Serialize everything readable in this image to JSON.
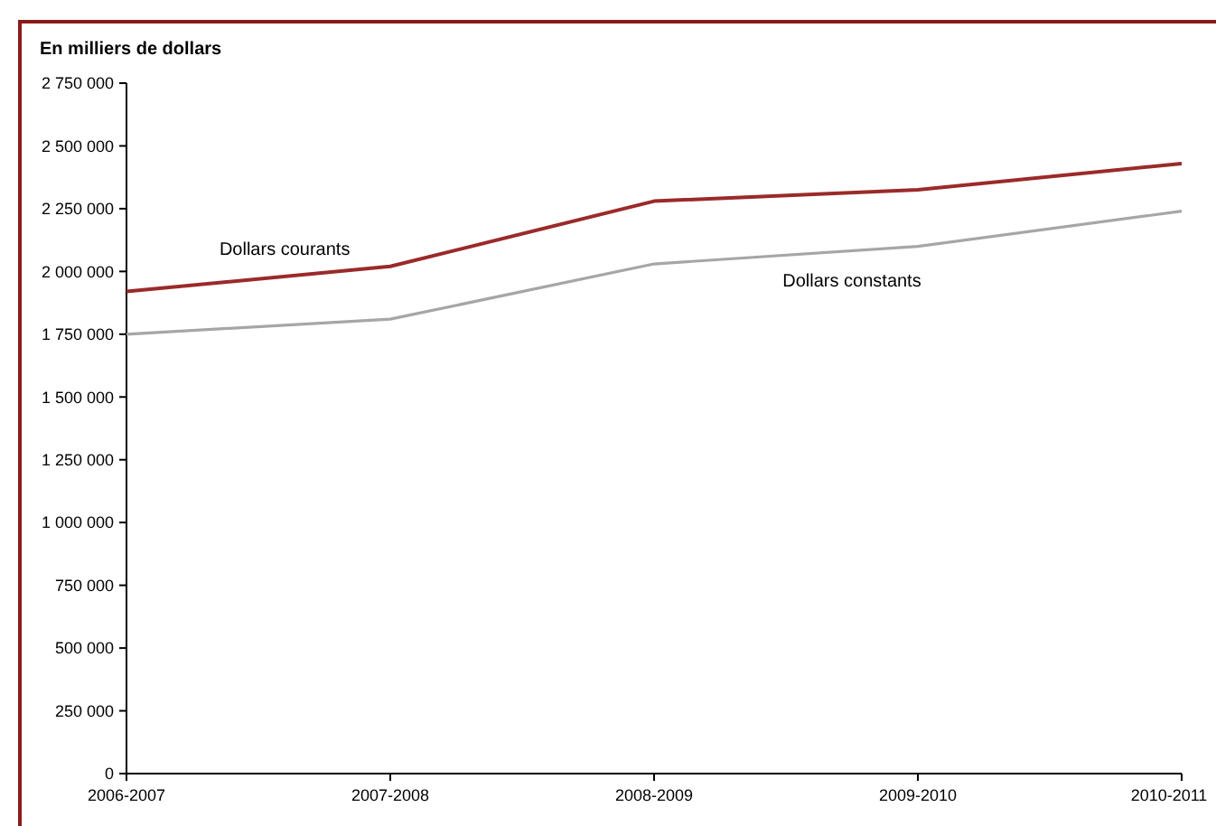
{
  "chart_data": {
    "type": "line",
    "ylabel": "En milliers de dollars",
    "categories": [
      "2006-2007",
      "2007-2008",
      "2008-2009",
      "2009-2010",
      "2010-2011"
    ],
    "series": [
      {
        "name": "Dollars courants",
        "color": "#9b2a2a",
        "values": [
          1920000,
          2020000,
          2280000,
          2325000,
          2430000
        ]
      },
      {
        "name": "Dollars constants",
        "color": "#a6a6a6",
        "values": [
          1750000,
          1810000,
          2030000,
          2100000,
          2240000
        ]
      }
    ],
    "ylim": [
      0,
      2750000
    ],
    "yticks": [
      0,
      {
        "value": 250000,
        "label": "250 000"
      },
      {
        "value": 500000,
        "label": "500 000"
      },
      {
        "value": 750000,
        "label": "750 000"
      },
      {
        "value": 1000000,
        "label": "1 000 000"
      },
      {
        "value": 1250000,
        "label": "1 250 000"
      },
      {
        "value": 1500000,
        "label": "1 500 000"
      },
      {
        "value": 1750000,
        "label": "1 750 000"
      },
      {
        "value": 2000000,
        "label": "2 000 000"
      },
      {
        "value": 2250000,
        "label": "2 250 000"
      },
      {
        "value": 2500000,
        "label": "2 500 000"
      },
      {
        "value": 2750000,
        "label": "2 750 000"
      }
    ],
    "grid": false,
    "marker": "none",
    "line_style": "solid"
  }
}
